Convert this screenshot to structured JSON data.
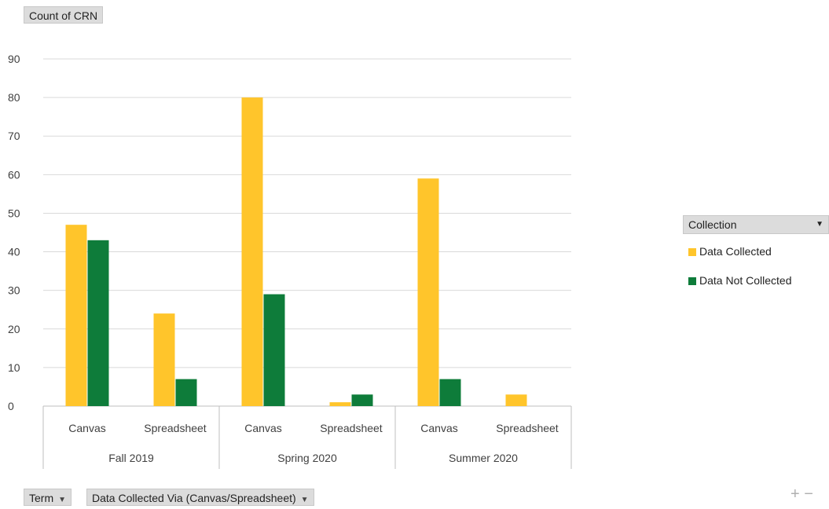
{
  "value_field": "Count of CRN",
  "axis_fields": [
    {
      "label": "Term",
      "icon": "filter-dropdown-icon"
    },
    {
      "label": "Data Collected Via (Canvas/Spreadsheet)",
      "icon": "filter-dropdown-icon"
    }
  ],
  "legend": {
    "title": "Collection",
    "items": [
      {
        "label": "Data Collected",
        "color": "#FFC52B"
      },
      {
        "label": "Data Not Collected",
        "color": "#0E7C3A"
      }
    ]
  },
  "zoom": {
    "expand": "+",
    "collapse": "−"
  },
  "chart_data": {
    "type": "bar",
    "title": "",
    "xlabel": "",
    "ylabel": "",
    "ylim": [
      0,
      90
    ],
    "yticks": [
      0,
      10,
      20,
      30,
      40,
      50,
      60,
      70,
      80,
      90
    ],
    "grid": true,
    "legend_position": "right",
    "groups": [
      {
        "label": "Fall 2019",
        "categories": [
          "Canvas",
          "Spreadsheet"
        ]
      },
      {
        "label": "Spring 2020",
        "categories": [
          "Canvas",
          "Spreadsheet"
        ]
      },
      {
        "label": "Summer 2020",
        "categories": [
          "Canvas",
          "Spreadsheet"
        ]
      }
    ],
    "series": [
      {
        "name": "Data Collected",
        "color": "#FFC52B",
        "values": [
          47,
          24,
          80,
          1,
          59,
          3
        ]
      },
      {
        "name": "Data Not Collected",
        "color": "#0E7C3A",
        "values": [
          43,
          7,
          29,
          3,
          7,
          null
        ]
      }
    ]
  }
}
